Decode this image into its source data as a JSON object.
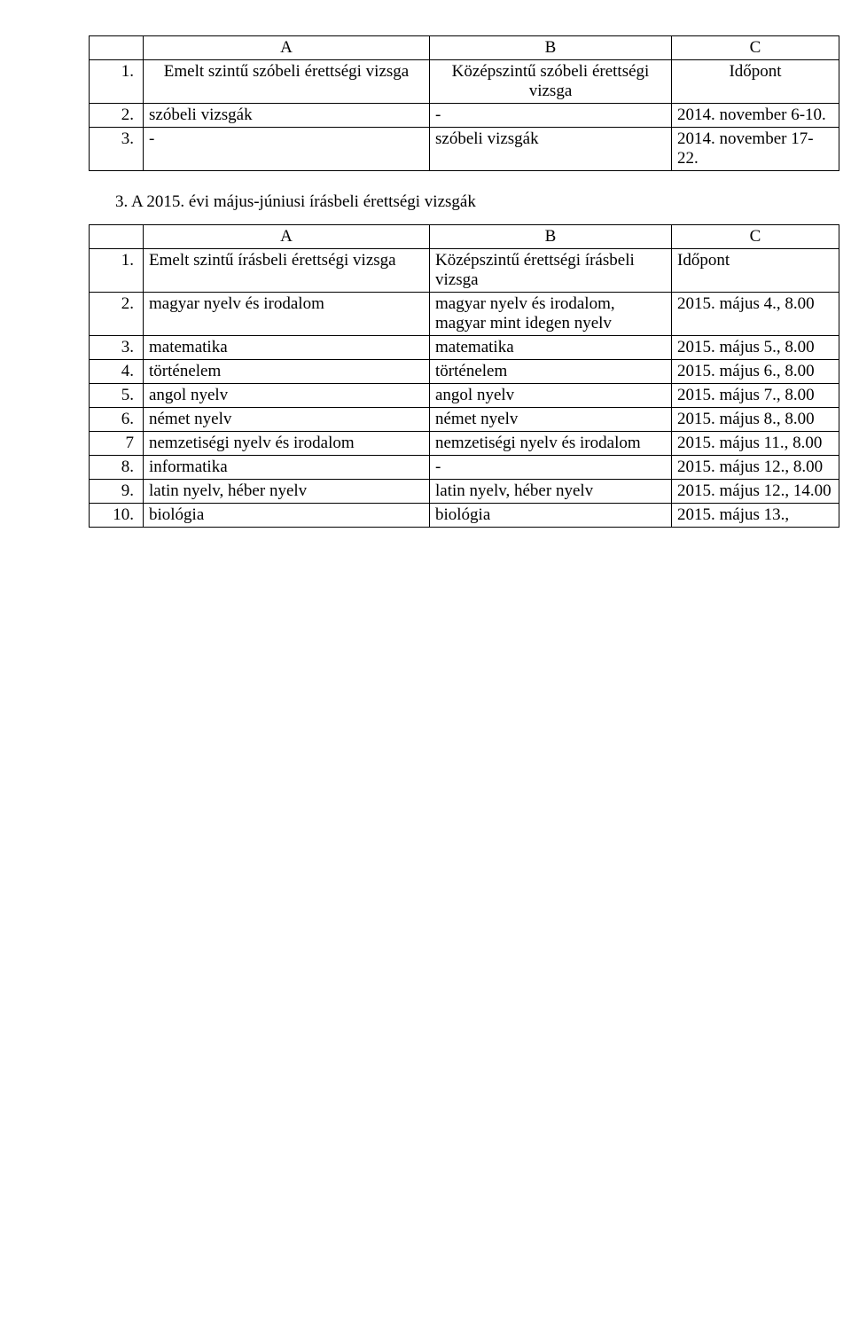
{
  "table1": {
    "headers": {
      "num": "",
      "a": "A",
      "b": "B",
      "c": "C"
    },
    "rows": [
      {
        "num": "1.",
        "a": "Emelt szintű szóbeli érettségi vizsga",
        "b": "Középszintű szóbeli érettségi vizsga",
        "c": "Időpont"
      },
      {
        "num": "2.",
        "a": "szóbeli vizsgák",
        "b": "-",
        "c": "2014. november 6-10."
      },
      {
        "num": "3.",
        "a": "-",
        "b": "szóbeli vizsgák",
        "c": "2014. november 17-22."
      }
    ]
  },
  "section_title": "3. A 2015. évi május-júniusi írásbeli érettségi vizsgák",
  "table2": {
    "headers": {
      "num": "",
      "a": "A",
      "b": "B",
      "c": "C"
    },
    "rows": [
      {
        "num": "1.",
        "a": "Emelt szintű írásbeli érettségi vizsga",
        "b": "Középszintű érettségi írásbeli vizsga",
        "c": "Időpont"
      },
      {
        "num": "2.",
        "a": "magyar nyelv és irodalom",
        "b": "magyar nyelv és irodalom, magyar mint idegen nyelv",
        "c": "2015. május 4., 8.00"
      },
      {
        "num": "3.",
        "a": "matematika",
        "b": "matematika",
        "c": "2015. május 5., 8.00"
      },
      {
        "num": "4.",
        "a": "történelem",
        "b": "történelem",
        "c": "2015. május 6., 8.00"
      },
      {
        "num": "5.",
        "a": "angol nyelv",
        "b": "angol nyelv",
        "c": "2015. május 7., 8.00"
      },
      {
        "num": "6.",
        "a": "német nyelv",
        "b": "német nyelv",
        "c": "2015. május 8., 8.00"
      },
      {
        "num": "7",
        "a": "nemzetiségi nyelv és irodalom",
        "b": "nemzetiségi nyelv és irodalom",
        "c": "2015. május 11., 8.00"
      },
      {
        "num": "8.",
        "a": "informatika",
        "b": "-",
        "c": "2015. május 12., 8.00"
      },
      {
        "num": "9.",
        "a": "latin nyelv, héber nyelv",
        "b": "latin nyelv, héber nyelv",
        "c": "2015. május 12., 14.00"
      },
      {
        "num": "10.",
        "a": "biológia",
        "b": "biológia",
        "c": "2015. május 13.,"
      }
    ]
  }
}
